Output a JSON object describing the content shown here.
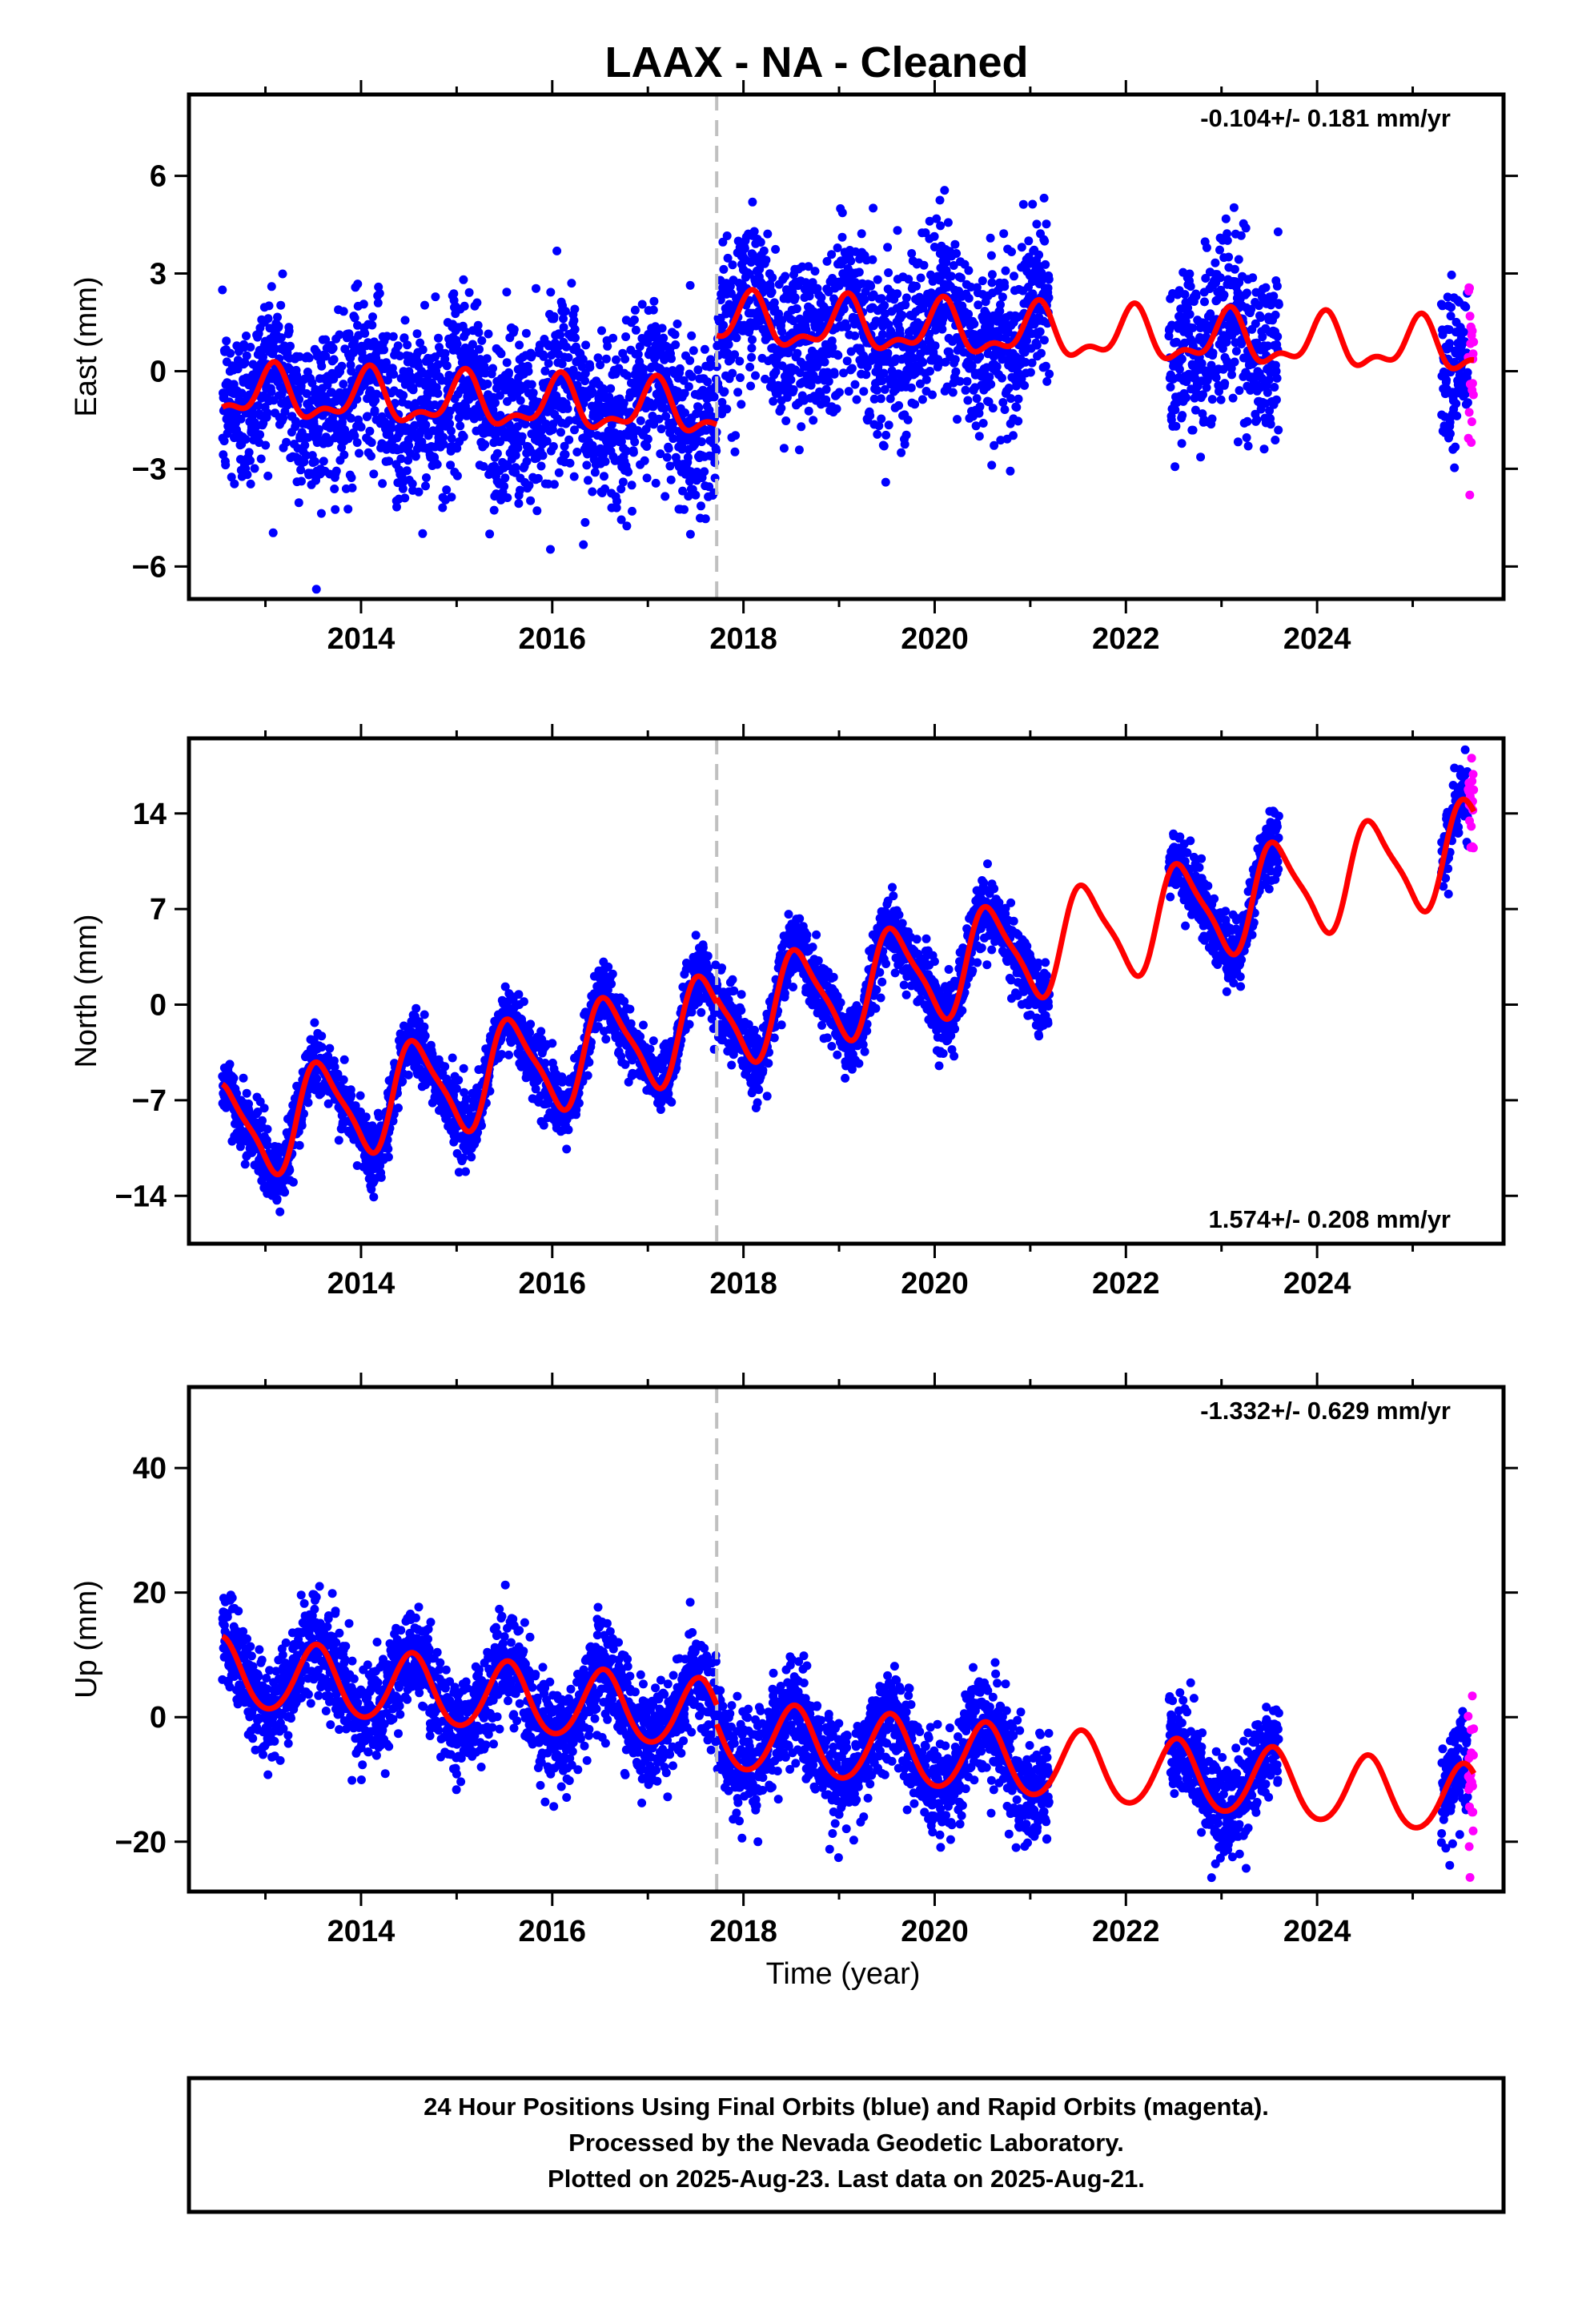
{
  "title": "LAAX  - NA - Cleaned",
  "xlabel": "Time (year)",
  "footer": {
    "line1": "24 Hour Positions Using Final Orbits (blue) and Rapid Orbits (magenta).",
    "line2": "Processed by the Nevada Geodetic Laboratory.",
    "line3": "Plotted on 2025-Aug-23. Last data on 2025-Aug-21."
  },
  "colors": {
    "final": "#0000ff",
    "rapid": "#ff00ff",
    "model": "#ff0000",
    "event": "#c0c0c0"
  },
  "chart_data": [
    {
      "type": "scatter",
      "component": "East",
      "ylabel": "East (mm)",
      "rate_text": "-0.104+/- 0.181 mm/yr",
      "xlim": [
        2012.2,
        2025.95
      ],
      "ylim": [
        -7,
        8.5
      ],
      "yticks": [
        -6,
        -3,
        0,
        3,
        6
      ],
      "xticks": [
        2014,
        2016,
        2018,
        2020,
        2022,
        2024
      ],
      "event_line": 2017.72,
      "final_data_spans": [
        [
          2012.55,
          2021.2
        ],
        [
          2022.45,
          2023.6
        ],
        [
          2025.3,
          2025.58
        ]
      ],
      "rapid_span": [
        2025.58,
        2025.64
      ],
      "model": {
        "rate": -0.104,
        "segments": [
          {
            "start": 2012.55,
            "end": 2017.72,
            "offset_at_start": -0.7
          },
          {
            "start": 2017.72,
            "end": 2025.64,
            "offset_at_start": 1.5
          }
        ],
        "annual_amp": 0.7,
        "annual_phase": 1.1,
        "semiannual_amp": 0.35,
        "semiannual_phase": 0.3,
        "scatter": 1.3
      }
    },
    {
      "type": "scatter",
      "component": "North",
      "ylabel": "North (mm)",
      "rate_text": "1.574+/- 0.208 mm/yr",
      "xlim": [
        2012.2,
        2025.95
      ],
      "ylim": [
        -17.5,
        19.5
      ],
      "yticks": [
        -14,
        -7,
        0,
        7,
        14
      ],
      "xticks": [
        2014,
        2016,
        2018,
        2020,
        2022,
        2024
      ],
      "event_line": 2017.72,
      "final_data_spans": [
        [
          2012.55,
          2021.2
        ],
        [
          2022.45,
          2023.6
        ],
        [
          2025.3,
          2025.58
        ]
      ],
      "rapid_span": [
        2025.58,
        2025.64
      ],
      "model": {
        "rate": 1.574,
        "segments": [
          {
            "start": 2012.55,
            "end": 2017.72,
            "offset_at_start": -9.5
          },
          {
            "start": 2017.72,
            "end": 2025.64,
            "offset_at_start": -1.0
          }
        ],
        "annual_amp": 3.5,
        "annual_phase": 4.2,
        "semiannual_amp": 0.8,
        "semiannual_phase": 2.2,
        "scatter": 1.2
      }
    },
    {
      "type": "scatter",
      "component": "Up",
      "ylabel": "Up (mm)",
      "rate_text": "-1.332+/- 0.629 mm/yr",
      "xlim": [
        2012.2,
        2025.95
      ],
      "ylim": [
        -28,
        53
      ],
      "yticks": [
        -20,
        0,
        20,
        40
      ],
      "xticks": [
        2014,
        2016,
        2018,
        2020,
        2022,
        2024
      ],
      "event_line": 2017.72,
      "final_data_spans": [
        [
          2012.55,
          2021.2
        ],
        [
          2022.45,
          2023.6
        ],
        [
          2025.3,
          2025.58
        ]
      ],
      "rapid_span": [
        2025.58,
        2025.64
      ],
      "model": {
        "rate": -1.332,
        "segments": [
          {
            "start": 2012.55,
            "end": 2017.72,
            "offset_at_start": 7.0
          },
          {
            "start": 2017.72,
            "end": 2025.64,
            "offset_at_start": -3.0
          }
        ],
        "annual_amp": 5.5,
        "annual_phase": 4.5,
        "semiannual_amp": 0.5,
        "semiannual_phase": 1.0,
        "scatter": 4.0
      }
    }
  ]
}
